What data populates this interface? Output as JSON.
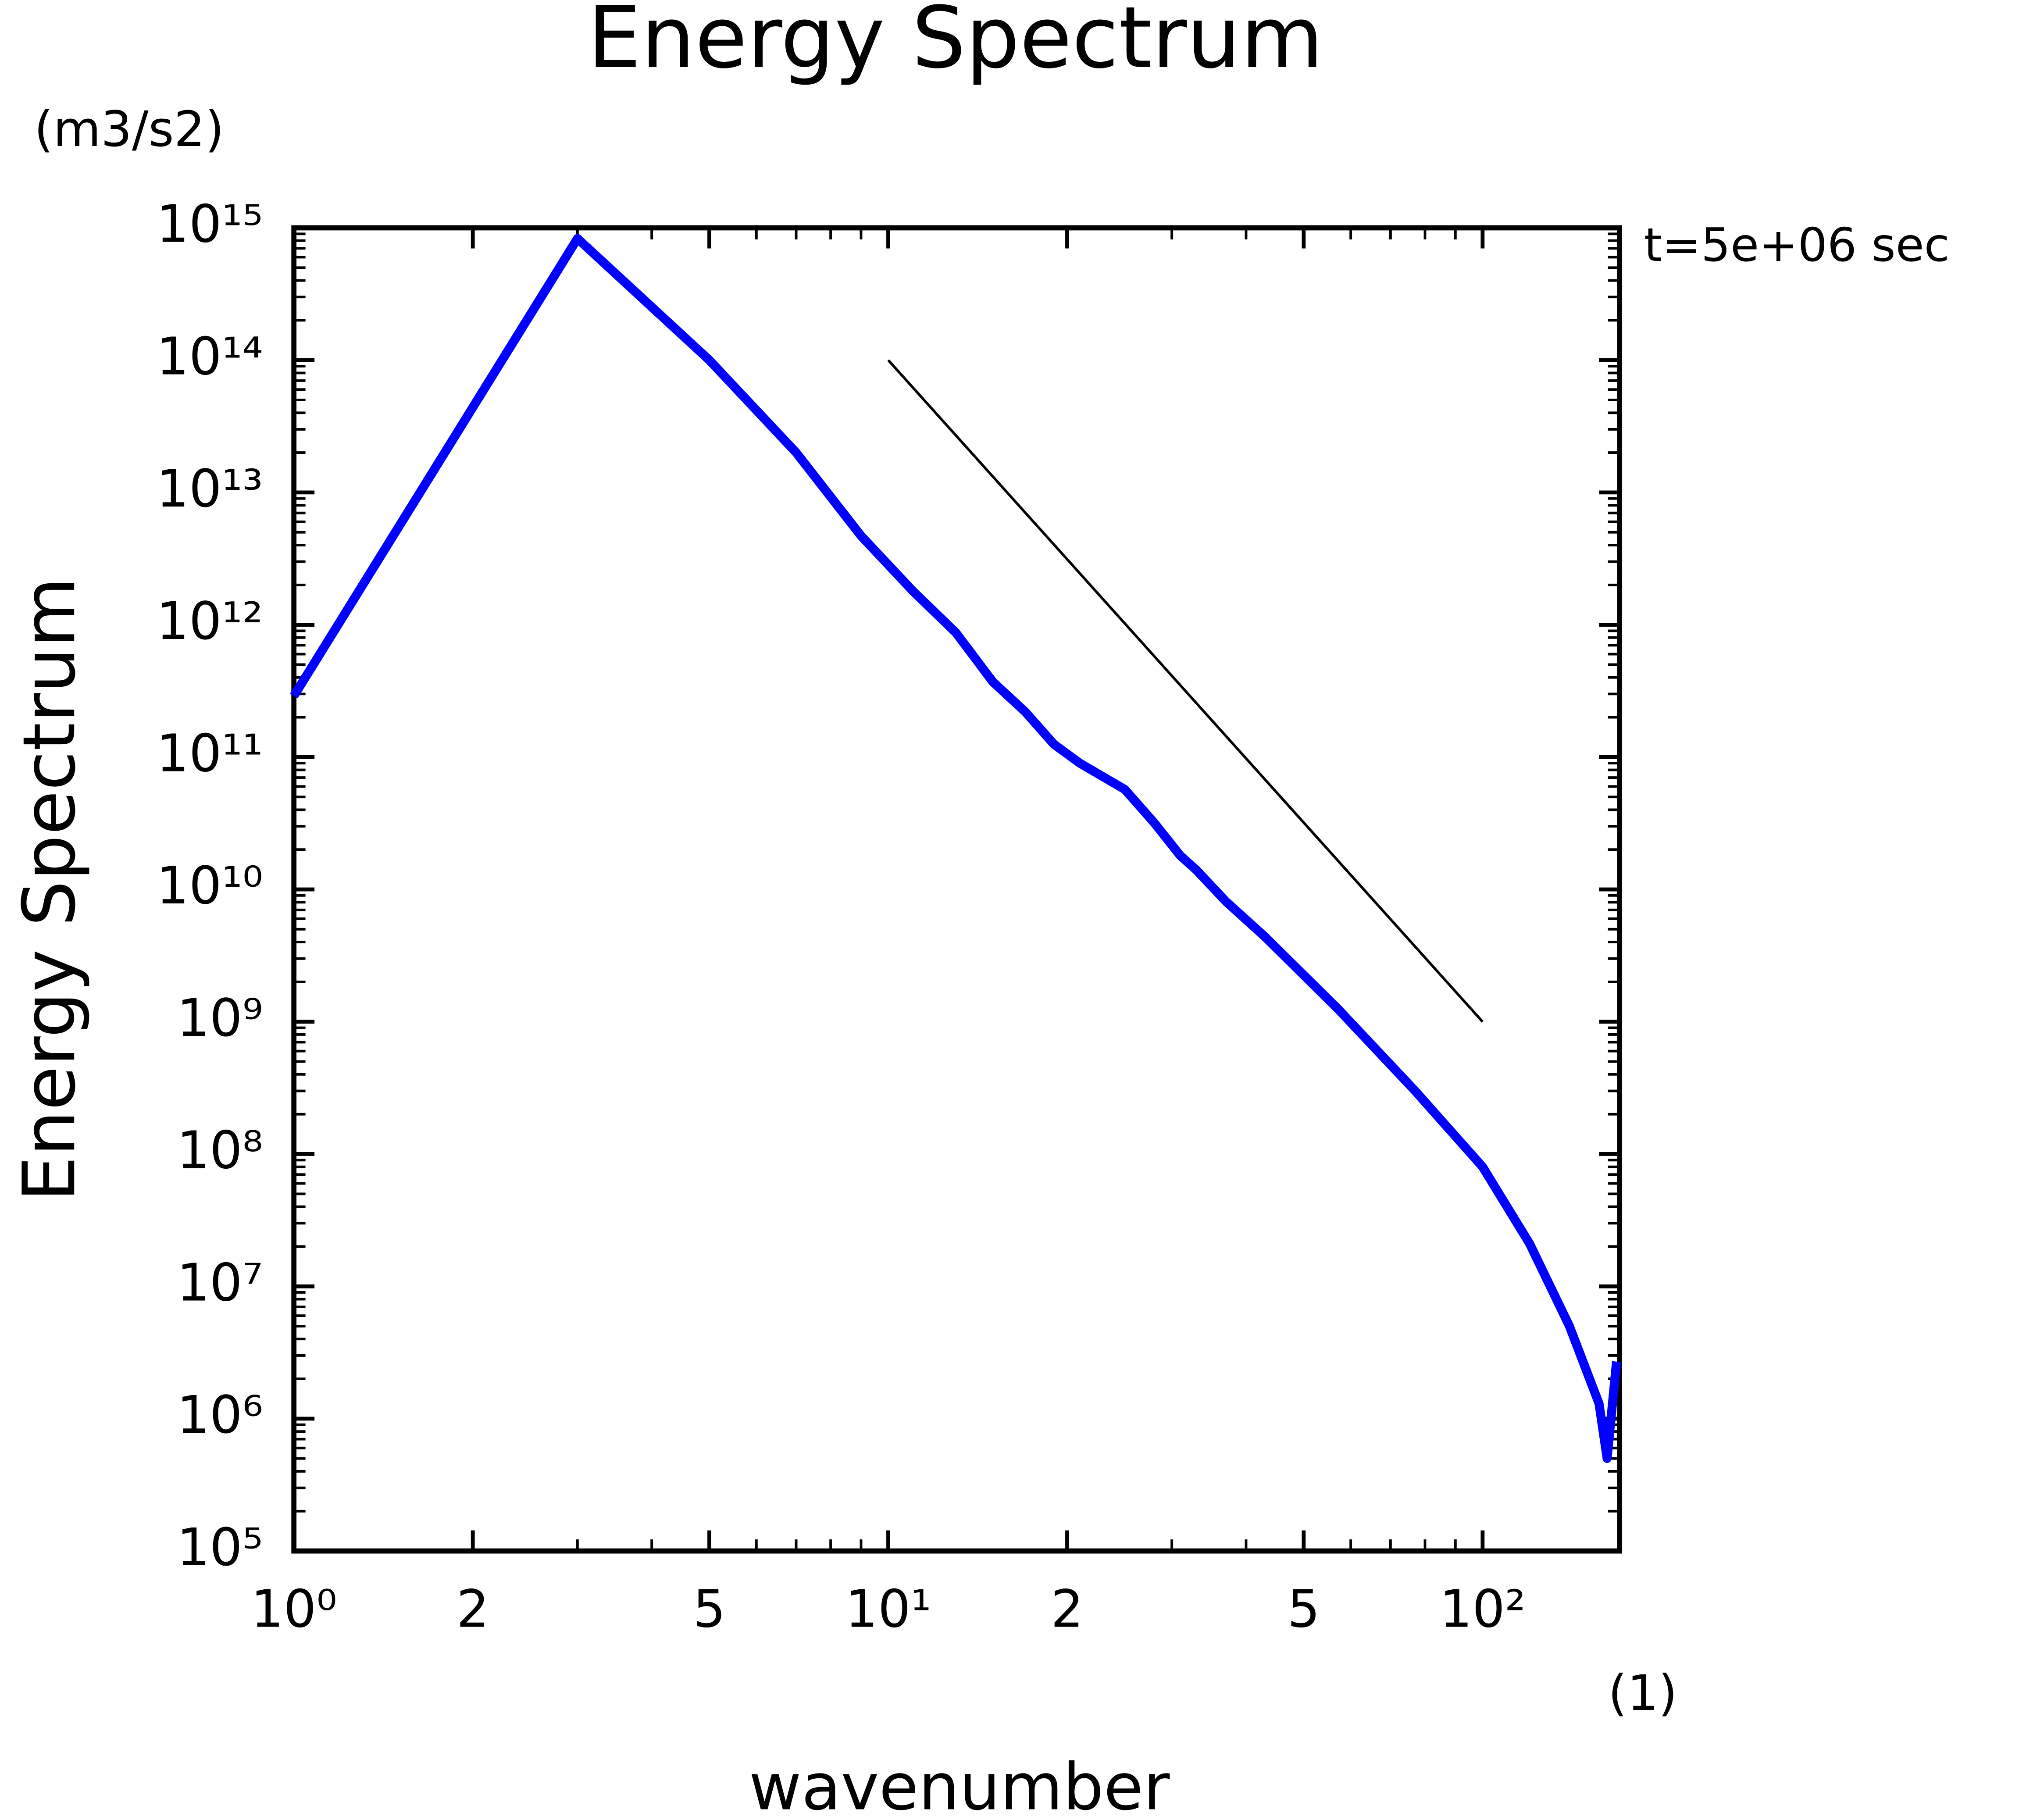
{
  "chart_data": {
    "type": "line",
    "title": "Energy Spectrum",
    "y_unit": "(m3/s2)",
    "ylabel": "Energy Spectrum",
    "xlabel": "wavenumber",
    "x_unit": "(1)",
    "annotation": "t=5e+06 sec",
    "xscale": "log",
    "yscale": "log",
    "xlim": [
      1,
      170
    ],
    "ylim": [
      100000.0,
      1000000000000000.0
    ],
    "xticks": [
      {
        "value": 1,
        "label": "10⁰"
      },
      2,
      5,
      {
        "value": 10,
        "label": "10¹"
      },
      {
        "value": 20,
        "label": "2"
      },
      {
        "value": 50,
        "label": "5"
      },
      {
        "value": 100,
        "label": "10²"
      }
    ],
    "xminorticks": [
      3,
      4,
      6,
      7,
      8,
      9,
      30,
      40,
      60,
      70,
      80,
      90
    ],
    "yticks": [
      {
        "value": 100000.0,
        "label": "10⁵"
      },
      {
        "value": 1000000.0,
        "label": "10⁶"
      },
      {
        "value": 10000000.0,
        "label": "10⁷"
      },
      {
        "value": 100000000.0,
        "label": "10⁸"
      },
      {
        "value": 1000000000.0,
        "label": "10⁹"
      },
      {
        "value": 10000000000.0,
        "label": "10¹⁰"
      },
      {
        "value": 100000000000.0,
        "label": "10¹¹"
      },
      {
        "value": 1000000000000.0,
        "label": "10¹²"
      },
      {
        "value": 10000000000000.0,
        "label": "10¹³"
      },
      {
        "value": 100000000000000.0,
        "label": "10¹⁴"
      },
      {
        "value": 1000000000000000.0,
        "label": "10¹⁵"
      }
    ],
    "yminorticks": [
      200000.0,
      300000.0,
      400000.0,
      500000.0,
      600000.0,
      700000.0,
      800000.0,
      900000.0,
      2000000.0,
      3000000.0,
      4000000.0,
      5000000.0,
      6000000.0,
      7000000.0,
      8000000.0,
      9000000.0,
      20000000.0,
      30000000.0,
      40000000.0,
      50000000.0,
      60000000.0,
      70000000.0,
      80000000.0,
      90000000.0,
      200000000.0,
      300000000.0,
      400000000.0,
      500000000.0,
      600000000.0,
      700000000.0,
      800000000.0,
      900000000.0,
      2000000000.0,
      3000000000.0,
      4000000000.0,
      5000000000.0,
      6000000000.0,
      7000000000.0,
      8000000000.0,
      9000000000.0,
      20000000000.0,
      30000000000.0,
      40000000000.0,
      50000000000.0,
      60000000000.0,
      70000000000.0,
      80000000000.0,
      90000000000.0,
      200000000000.0,
      300000000000.0,
      400000000000.0,
      500000000000.0,
      600000000000.0,
      700000000000.0,
      800000000000.0,
      900000000000.0,
      2000000000000.0,
      3000000000000.0,
      4000000000000.0,
      5000000000000.0,
      6000000000000.0,
      7000000000000.0,
      8000000000000.0,
      9000000000000.0,
      20000000000000.0,
      30000000000000.0,
      40000000000000.0,
      50000000000000.0,
      60000000000000.0,
      70000000000000.0,
      80000000000000.0,
      90000000000000.0,
      200000000000000.0,
      300000000000000.0,
      400000000000000.0,
      500000000000000.0,
      600000000000000.0,
      700000000000000.0,
      800000000000000.0,
      900000000000000.0
    ],
    "x": [
      1,
      3,
      5,
      7,
      9,
      11,
      13,
      15,
      17,
      19,
      21,
      25,
      28,
      31,
      33,
      37,
      43,
      57,
      77,
      100,
      120,
      140,
      157,
      162,
      168
    ],
    "series": [
      {
        "color": "#0000ff",
        "values": [
          290000000000.0,
          830000000000000.0,
          100000000000000.0,
          20000000000000.0,
          4700000000000.0,
          1800000000000.0,
          870000000000.0,
          370000000000.0,
          220000000000.0,
          125000000000.0,
          90000000000.0,
          57000000000.0,
          32000000000.0,
          18000000000.0,
          14000000000.0,
          8100000000.0,
          4400000000.0,
          1260000000.0,
          300000000.0,
          80000000.0,
          21000000.0,
          5000000.0,
          1300000.0,
          500000.0,
          2700000.0
        ]
      }
    ],
    "reference_line": {
      "color": "#000000",
      "x": [
        10,
        100
      ],
      "values": [
        100000000000000.0,
        1000000000.0
      ]
    }
  }
}
